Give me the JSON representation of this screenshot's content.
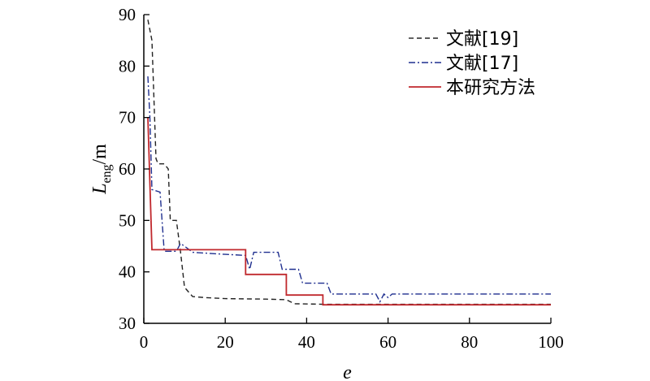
{
  "chart_data": {
    "type": "line",
    "xlabel": "e",
    "ylabel_main": "L",
    "ylabel_sub": "eng",
    "ylabel_unit": "/m",
    "xlim": [
      0,
      100
    ],
    "ylim": [
      30,
      90
    ],
    "xticks": [
      0,
      20,
      40,
      60,
      80,
      100
    ],
    "yticks": [
      30,
      40,
      50,
      60,
      70,
      80,
      90
    ],
    "legend_position": "top-right",
    "series": [
      {
        "name": "文献[19]",
        "style": "dashed",
        "color": "#222222",
        "points": [
          [
            1,
            89
          ],
          [
            2,
            85
          ],
          [
            3,
            62
          ],
          [
            3.5,
            61
          ],
          [
            5,
            61
          ],
          [
            6,
            60
          ],
          [
            6.5,
            50
          ],
          [
            8,
            50
          ],
          [
            9,
            44
          ],
          [
            10,
            37
          ],
          [
            12,
            35.2
          ],
          [
            15,
            35
          ],
          [
            20,
            34.8
          ],
          [
            30,
            34.7
          ],
          [
            35,
            34.6
          ],
          [
            37,
            33.8
          ],
          [
            45,
            33.7
          ],
          [
            100,
            33.7
          ]
        ]
      },
      {
        "name": "文献[17]",
        "style": "dashdot",
        "color": "#1f2f8f",
        "points": [
          [
            1,
            78
          ],
          [
            1.5,
            70
          ],
          [
            2,
            56
          ],
          [
            4,
            55.5
          ],
          [
            5,
            44
          ],
          [
            8,
            44
          ],
          [
            9,
            45.5
          ],
          [
            10,
            45
          ],
          [
            12,
            43.8
          ],
          [
            20,
            43.4
          ],
          [
            25,
            43.2
          ],
          [
            26,
            40.5
          ],
          [
            27,
            43.8
          ],
          [
            33,
            43.8
          ],
          [
            34,
            40.5
          ],
          [
            38,
            40.5
          ],
          [
            39,
            37.8
          ],
          [
            45,
            37.8
          ],
          [
            46,
            35.7
          ],
          [
            57,
            35.7
          ],
          [
            58,
            34.2
          ],
          [
            59,
            35.7
          ],
          [
            60,
            35
          ],
          [
            61,
            35.7
          ],
          [
            100,
            35.7
          ]
        ]
      },
      {
        "name": "本研究方法",
        "style": "solid",
        "color": "#c0282d",
        "points": [
          [
            1,
            70
          ],
          [
            2,
            44.3
          ],
          [
            25,
            44.3
          ],
          [
            25,
            39.5
          ],
          [
            35,
            39.5
          ],
          [
            35,
            35.5
          ],
          [
            44,
            35.5
          ],
          [
            44,
            33.6
          ],
          [
            100,
            33.6
          ]
        ]
      }
    ]
  }
}
